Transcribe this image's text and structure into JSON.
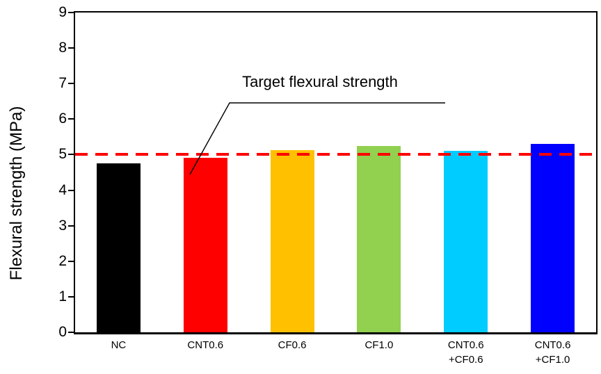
{
  "chart_data": {
    "type": "bar",
    "title": "",
    "xlabel": "",
    "ylabel": "Flexural strength (MPa)",
    "ylim": [
      0,
      9
    ],
    "yticks": [
      0,
      1,
      2,
      3,
      4,
      5,
      6,
      7,
      8,
      9
    ],
    "grid": false,
    "legend": "none",
    "categories": [
      "NC",
      "CNT0.6",
      "CF0.6",
      "CF1.0",
      "CNT0.6 +CF0.6",
      "CNT0.6 +CF1.0"
    ],
    "category_label_lines": [
      [
        "NC"
      ],
      [
        "CNT0.6"
      ],
      [
        "CF0.6"
      ],
      [
        "CF1.0"
      ],
      [
        "CNT0.6",
        "+CF0.6"
      ],
      [
        "CNT0.6",
        "+CF1.0"
      ]
    ],
    "values": [
      4.75,
      4.92,
      5.12,
      5.25,
      5.1,
      5.3
    ],
    "bar_colors": [
      "#000000",
      "#FF0000",
      "#FFC000",
      "#92D050",
      "#00CCFF",
      "#0000FF"
    ],
    "target_line": {
      "value": 5.0,
      "color": "#FF0000",
      "style": "dashed",
      "label": "Target flexural strength"
    }
  },
  "colors": {
    "axis": "#000000",
    "background": "#FFFFFF",
    "annotation_line": "#000000"
  }
}
